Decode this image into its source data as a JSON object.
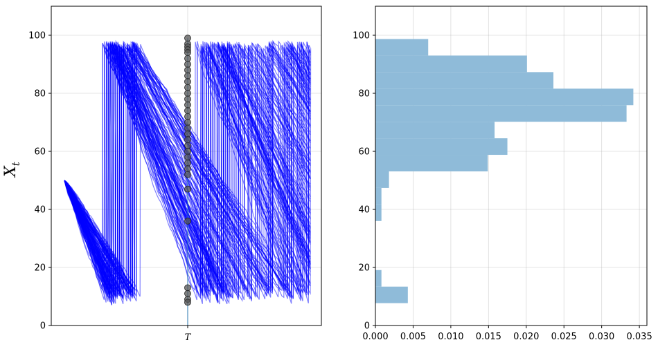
{
  "chart_data": [
    {
      "type": "line",
      "title": "",
      "ylabel": "X_t",
      "ylim": [
        0,
        110
      ],
      "yticks": [
        0,
        20,
        40,
        60,
        80,
        100
      ],
      "x_tick_labels": [
        "T"
      ],
      "grid": true,
      "series_color": "#0000ff",
      "marker_color": "#555555",
      "description_values": {
        "start_value": 50,
        "reset_top": 98,
        "reset_bottom": 8
      },
      "markers_at_T": [
        99,
        97,
        96,
        95,
        94,
        92,
        90,
        88,
        86,
        84,
        82,
        80,
        78,
        76,
        74,
        72,
        70,
        68,
        66,
        64,
        62,
        60,
        58,
        56,
        54,
        52,
        47,
        36,
        13,
        11,
        9,
        8
      ]
    },
    {
      "type": "bar",
      "orientation": "horizontal",
      "title": "",
      "xlim": [
        0,
        0.036
      ],
      "ylim": [
        0,
        110
      ],
      "xticks": [
        "0.000",
        "0.005",
        "0.010",
        "0.015",
        "0.020",
        "0.025",
        "0.030",
        "0.035"
      ],
      "yticks": [
        0,
        20,
        40,
        60,
        80,
        100
      ],
      "bar_color": "#8fbbd9",
      "grid": true,
      "bins": [
        {
          "y0": 7.7,
          "y1": 13.4,
          "value": 0.0043
        },
        {
          "y0": 13.4,
          "y1": 19.1,
          "value": 0.0008
        },
        {
          "y0": 36.0,
          "y1": 41.7,
          "value": 0.0008
        },
        {
          "y0": 41.7,
          "y1": 47.4,
          "value": 0.0008
        },
        {
          "y0": 47.4,
          "y1": 53.1,
          "value": 0.0018
        },
        {
          "y0": 53.1,
          "y1": 58.8,
          "value": 0.0149
        },
        {
          "y0": 58.8,
          "y1": 64.5,
          "value": 0.0175
        },
        {
          "y0": 64.5,
          "y1": 70.2,
          "value": 0.0158
        },
        {
          "y0": 70.2,
          "y1": 75.9,
          "value": 0.0333
        },
        {
          "y0": 75.9,
          "y1": 81.6,
          "value": 0.0342
        },
        {
          "y0": 81.6,
          "y1": 87.3,
          "value": 0.0236
        },
        {
          "y0": 87.3,
          "y1": 93.0,
          "value": 0.0201
        },
        {
          "y0": 93.0,
          "y1": 98.7,
          "value": 0.007
        }
      ]
    }
  ]
}
